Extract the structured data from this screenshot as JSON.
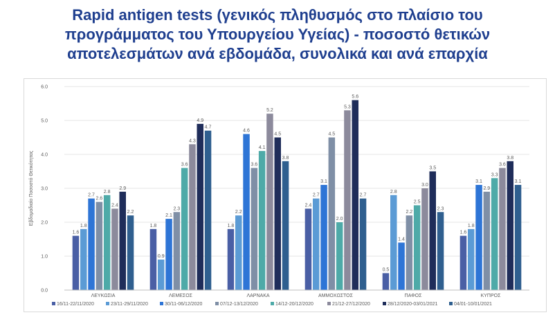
{
  "title_lines": [
    "Rapid antigen tests (γενικός πληθυσμός στο πλαίσιο του",
    "προγράμματος του Υπουργείου Υγείας) - ποσοστό θετικών",
    "αποτελεσμάτων ανά εβδομάδα, συνολικά και ανά επαρχία"
  ],
  "chart_data": {
    "type": "bar",
    "title": "Rapid antigen tests (γενικός πληθυσμός στο πλαίσιο του προγράμματος του Υπουργείου Υγείας) - ποσοστό θετικών αποτελεσμάτων ανά εβδομάδα, συνολικά και ανά επαρχία",
    "ylabel": "Εβδομαδιαίο Ποσοστό Θετικότητας",
    "xlabel": "",
    "ylim": [
      0,
      6
    ],
    "yticks": [
      "0.0",
      "1.0",
      "2.0",
      "3.0",
      "4.0",
      "5.0",
      "6.0"
    ],
    "grid": true,
    "legend_position": "bottom",
    "categories": [
      "ΛΕΥΚΩΣΙΑ",
      "ΛΕΜΕΣΟΣ",
      "ΛΑΡΝΑΚΑ",
      "ΑΜΜΟΧΩΣΤΟΣ",
      "ΠΑΦΟΣ",
      "ΚΥΠΡΟΣ"
    ],
    "series": [
      {
        "name": "16/11-22/11/2020",
        "color": "#4a5fa5",
        "values": [
          1.6,
          1.8,
          1.8,
          2.4,
          0.5,
          1.6
        ]
      },
      {
        "name": "23/11-29/11/2020",
        "color": "#5b9bd5",
        "values": [
          1.8,
          0.9,
          2.2,
          2.7,
          2.8,
          1.8
        ]
      },
      {
        "name": "30/11-06/12/2020",
        "color": "#2e75d6",
        "values": [
          2.7,
          2.1,
          4.6,
          3.1,
          1.4,
          3.1
        ]
      },
      {
        "name": "07/12-13/12/2020",
        "color": "#7f8fa6",
        "values": [
          2.6,
          2.3,
          3.6,
          4.5,
          2.2,
          2.9
        ]
      },
      {
        "name": "14/12-20/12/2020",
        "color": "#4eaaa8",
        "values": [
          2.8,
          3.6,
          4.1,
          2.0,
          2.5,
          3.3
        ]
      },
      {
        "name": "21/12-27/12/2020",
        "color": "#8c8a9c",
        "values": [
          2.4,
          4.3,
          5.2,
          5.3,
          3.0,
          3.6
        ]
      },
      {
        "name": "28/12/2020-03/01/2021",
        "color": "#1f2d5a",
        "values": [
          2.9,
          4.9,
          4.5,
          5.6,
          3.5,
          3.8
        ]
      },
      {
        "name": "04/01-10/01/2021",
        "color": "#2f5f8f",
        "values": [
          2.2,
          4.7,
          3.8,
          2.7,
          2.3,
          3.1
        ]
      }
    ]
  }
}
